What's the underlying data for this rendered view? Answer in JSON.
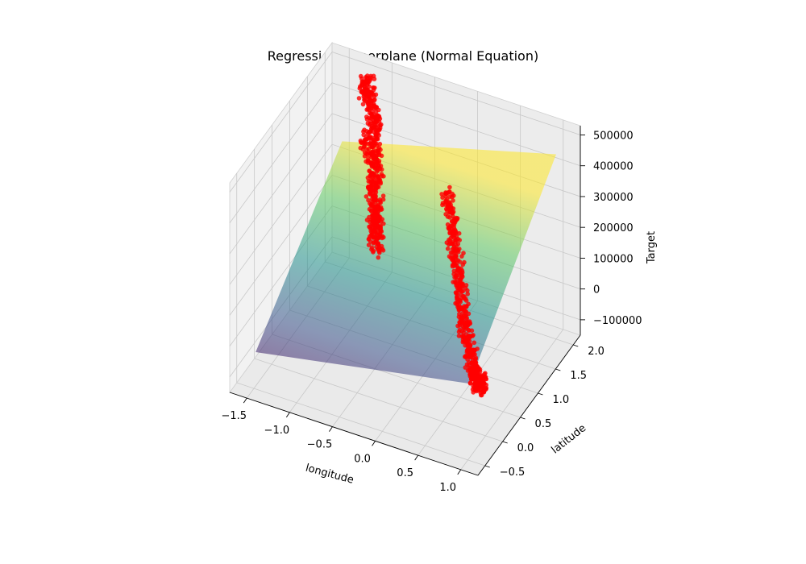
{
  "chart_data": {
    "type": "scatter",
    "title": "Regression Hyperplane (Normal Equation)",
    "xlabel": "longitude",
    "ylabel": "latitude",
    "zlabel": "Target",
    "xlim": [
      -1.7,
      1.2
    ],
    "ylim": [
      -0.7,
      2.2
    ],
    "zlim": [
      -150000,
      530000
    ],
    "x_ticks": [
      "−1.5",
      "−1.0",
      "−0.5",
      "0.0",
      "0.5",
      "1.0"
    ],
    "x_tick_values": [
      -1.5,
      -1.0,
      -0.5,
      0.0,
      0.5,
      1.0
    ],
    "y_ticks": [
      "−0.5",
      "0.0",
      "0.5",
      "1.0",
      "1.5",
      "2.0"
    ],
    "y_tick_values": [
      -0.5,
      0.0,
      0.5,
      1.0,
      1.5,
      2.0
    ],
    "z_ticks": [
      "−100000",
      "0",
      "100000",
      "200000",
      "300000",
      "400000",
      "500000"
    ],
    "z_tick_values": [
      -100000,
      0,
      100000,
      200000,
      300000,
      400000,
      500000
    ],
    "plane": {
      "x_range": [
        -1.5,
        1.0
      ],
      "y_range": [
        -0.45,
        2.0
      ],
      "corner_values": {
        "xmin_ymin": -40000,
        "xmax_ymin": 90000,
        "xmin_ymax": 260000,
        "xmax_ymax": 450000
      },
      "colormap": "viridis",
      "alpha": 0.55
    },
    "scatter_color": "#ff0000",
    "scatter_series": [
      {
        "cluster": "north",
        "points_sample": [
          [
            -1.15,
            1.95,
            500000
          ],
          [
            -1.2,
            1.9,
            480000
          ],
          [
            -1.1,
            1.85,
            450000
          ],
          [
            -1.05,
            1.8,
            420000
          ],
          [
            -1.0,
            1.75,
            380000
          ],
          [
            -1.1,
            1.7,
            350000
          ],
          [
            -0.95,
            1.65,
            320000
          ],
          [
            -1.0,
            1.6,
            300000
          ],
          [
            -0.9,
            1.55,
            260000
          ],
          [
            -0.95,
            1.5,
            230000
          ],
          [
            -0.85,
            1.45,
            200000
          ],
          [
            -0.9,
            1.4,
            170000
          ],
          [
            -0.8,
            1.35,
            150000
          ],
          [
            -0.85,
            1.3,
            120000
          ],
          [
            -0.75,
            1.25,
            100000
          ]
        ]
      },
      {
        "cluster": "south",
        "points_sample": [
          [
            0.35,
            0.5,
            500000
          ],
          [
            0.4,
            0.45,
            450000
          ],
          [
            0.45,
            0.4,
            400000
          ],
          [
            0.5,
            0.35,
            350000
          ],
          [
            0.55,
            0.3,
            300000
          ],
          [
            0.6,
            0.25,
            250000
          ],
          [
            0.65,
            0.2,
            200000
          ],
          [
            0.7,
            0.15,
            160000
          ],
          [
            0.75,
            0.1,
            120000
          ],
          [
            0.8,
            0.05,
            90000
          ],
          [
            0.85,
            0.0,
            60000
          ],
          [
            0.9,
            -0.05,
            40000
          ],
          [
            0.95,
            -0.1,
            30000
          ],
          [
            1.0,
            -0.15,
            40000
          ],
          [
            1.05,
            -0.2,
            60000
          ]
        ]
      }
    ],
    "grid": true
  }
}
